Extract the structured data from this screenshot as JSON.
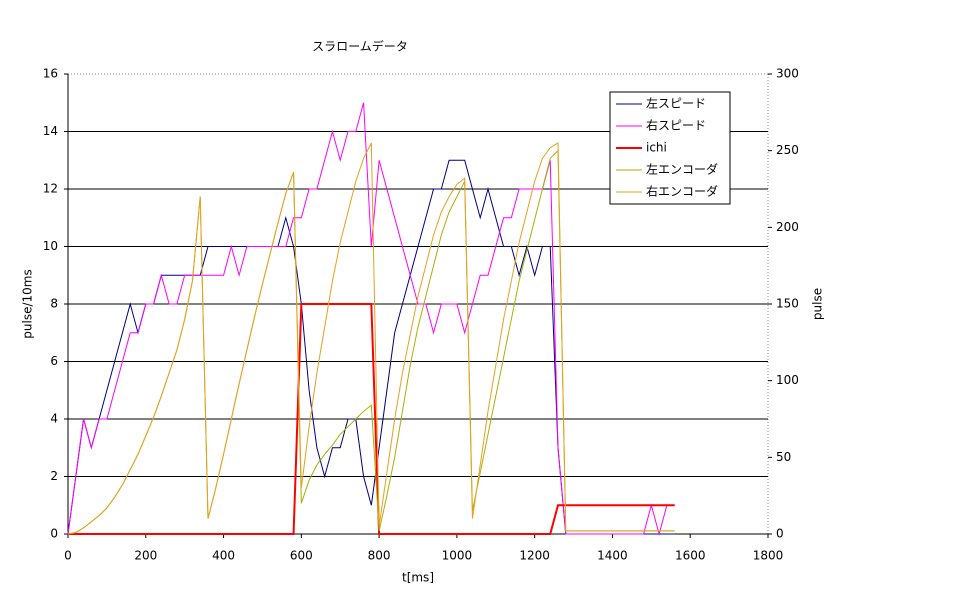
{
  "chart_data": {
    "type": "line",
    "title": "スラロームデータ",
    "x_label": "t[ms]",
    "y_label": "pulse/10ms",
    "y2_label": "pulse",
    "x": [
      0,
      20,
      40,
      60,
      80,
      100,
      120,
      140,
      160,
      180,
      200,
      220,
      240,
      260,
      280,
      300,
      320,
      340,
      360,
      380,
      400,
      420,
      440,
      460,
      480,
      500,
      520,
      540,
      560,
      580,
      600,
      620,
      640,
      660,
      680,
      700,
      720,
      740,
      760,
      780,
      800,
      820,
      840,
      860,
      880,
      900,
      920,
      940,
      960,
      980,
      1000,
      1020,
      1040,
      1060,
      1080,
      1100,
      1120,
      1140,
      1160,
      1180,
      1200,
      1220,
      1240,
      1260,
      1280,
      1300,
      1320,
      1340,
      1360,
      1380,
      1400,
      1420,
      1440,
      1460,
      1480,
      1500,
      1520,
      1540,
      1560
    ],
    "series": [
      {
        "name": "左スピード",
        "color": "#000080",
        "values": [
          0,
          2,
          4,
          3,
          4,
          5,
          6,
          7,
          8,
          7,
          8,
          8,
          9,
          9,
          9,
          9,
          9,
          9,
          10,
          10,
          10,
          10,
          10,
          10,
          10,
          10,
          10,
          10,
          11,
          10,
          8,
          5,
          3,
          2,
          3,
          3,
          4,
          4,
          2,
          1,
          3,
          5,
          7,
          8,
          9,
          10,
          11,
          12,
          12,
          13,
          13,
          13,
          12,
          11,
          12,
          11,
          10,
          10,
          9,
          10,
          9,
          10,
          10,
          3,
          0,
          0,
          0,
          0,
          0,
          0,
          0,
          0,
          0,
          0,
          0,
          0,
          0,
          0,
          0
        ]
      },
      {
        "name": "右スピード",
        "color": "#ff00ff",
        "values": [
          0,
          2,
          4,
          3,
          4,
          4,
          5,
          6,
          7,
          7,
          8,
          8,
          9,
          8,
          8,
          9,
          9,
          9,
          9,
          9,
          9,
          10,
          9,
          10,
          10,
          10,
          10,
          10,
          10,
          11,
          11,
          12,
          12,
          13,
          14,
          13,
          14,
          14,
          15,
          10,
          13,
          12,
          11,
          10,
          9,
          8,
          8,
          7,
          8,
          8,
          8,
          7,
          8,
          9,
          9,
          10,
          11,
          11,
          12,
          12,
          12,
          12,
          13,
          3,
          0,
          0,
          0,
          0,
          0,
          0,
          0,
          0,
          0,
          0,
          0,
          1,
          0,
          1,
          1
        ]
      },
      {
        "name": "ichi",
        "color": "#ff0000",
        "values": [
          0,
          0,
          0,
          0,
          0,
          0,
          0,
          0,
          0,
          0,
          0,
          0,
          0,
          0,
          0,
          0,
          0,
          0,
          0,
          0,
          0,
          0,
          0,
          0,
          0,
          0,
          0,
          0,
          0,
          0,
          8,
          8,
          8,
          8,
          8,
          8,
          8,
          8,
          8,
          8,
          0,
          0,
          0,
          0,
          0,
          0,
          0,
          0,
          0,
          0,
          0,
          0,
          0,
          0,
          0,
          0,
          0,
          0,
          0,
          0,
          0,
          0,
          0,
          1,
          1,
          1,
          1,
          1,
          1,
          1,
          1,
          1,
          1,
          1,
          1,
          1,
          1,
          1,
          1
        ]
      },
      {
        "name": "左エンコーダ",
        "color": "#a8b000",
        "axis": "y2",
        "values": [
          0,
          1,
          4,
          8,
          12,
          17,
          24,
          32,
          42,
          52,
          64,
          76,
          90,
          105,
          120,
          140,
          165,
          220,
          10,
          30,
          52,
          75,
          98,
          120,
          142,
          163,
          183,
          203,
          222,
          236,
          20,
          35,
          45,
          52,
          58,
          65,
          70,
          75,
          80,
          84,
          2,
          25,
          50,
          80,
          110,
          135,
          155,
          175,
          195,
          210,
          220,
          230,
          15,
          40,
          65,
          90,
          115,
          140,
          165,
          185,
          205,
          225,
          245,
          250,
          2,
          2,
          2,
          2,
          2,
          2,
          2,
          2,
          2,
          2,
          2,
          2,
          2,
          2,
          2
        ]
      },
      {
        "name": "右エンコーダ",
        "color": "#e8a020",
        "axis": "y2",
        "values": [
          0,
          1,
          4,
          8,
          12,
          17,
          24,
          32,
          42,
          52,
          64,
          76,
          90,
          105,
          120,
          140,
          165,
          220,
          10,
          30,
          52,
          75,
          98,
          120,
          142,
          163,
          183,
          203,
          222,
          236,
          30,
          70,
          105,
          135,
          165,
          190,
          210,
          230,
          245,
          255,
          5,
          40,
          75,
          105,
          130,
          155,
          175,
          195,
          210,
          220,
          228,
          232,
          10,
          45,
          80,
          110,
          140,
          165,
          190,
          210,
          230,
          245,
          252,
          255,
          2,
          2,
          2,
          2,
          2,
          2,
          2,
          2,
          2,
          2,
          2,
          2,
          2,
          2,
          2
        ]
      }
    ],
    "xlim": [
      0,
      1800
    ],
    "xticks": [
      0,
      200,
      400,
      600,
      800,
      1000,
      1200,
      1400,
      1600,
      1800
    ],
    "ylim": [
      0,
      16
    ],
    "yticks": [
      0,
      2,
      4,
      6,
      8,
      10,
      12,
      14,
      16
    ],
    "y2lim": [
      0,
      300
    ],
    "y2ticks": [
      0,
      50,
      100,
      150,
      200,
      250,
      300
    ],
    "grid": true,
    "legend": "upper right"
  }
}
